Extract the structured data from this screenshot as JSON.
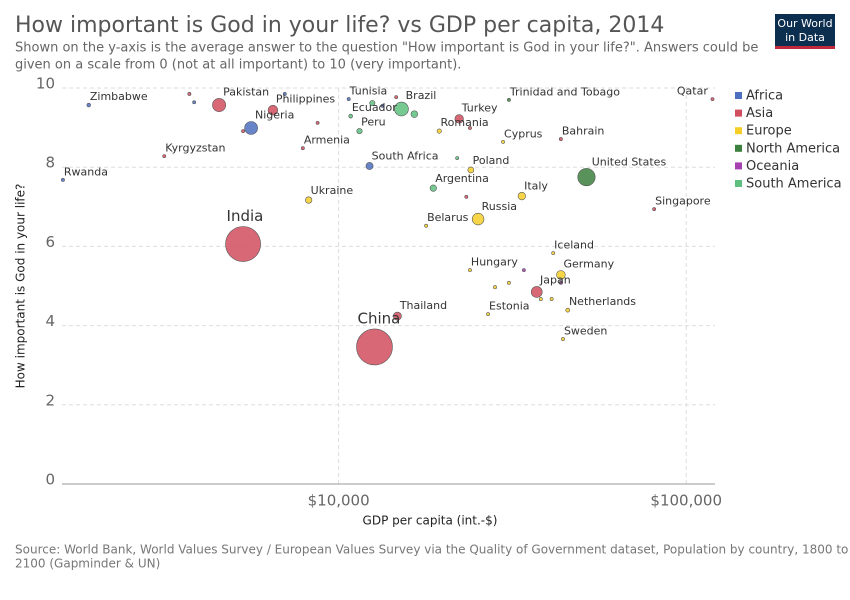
{
  "chart_data": {
    "type": "scatter",
    "title": "How important is God in your life? vs GDP per capita, 2014",
    "subtitle": [
      "Shown on the y-axis is the average answer to the question \"How important is God in your life?\". Answers could be",
      "given on a scale from 0 (not at all important) to 10 (very important)."
    ],
    "logo": [
      "Our World",
      "in Data"
    ],
    "x_label": "GDP per capita (int.-$)",
    "y_label": "How important is God in your life?",
    "source": [
      "Source: World Bank, World Values Survey / European Values Survey via the Quality of Government dataset, Population by country, 1800 to",
      "2100 (Gapminder & UN)"
    ],
    "log_x": true,
    "grid": true,
    "legend": "right",
    "xlim": [
      1600,
      121000
    ],
    "xticks": [
      {
        "value": 10000,
        "label": "$10,000"
      },
      {
        "value": 100000,
        "label": "$100,000"
      }
    ],
    "ylim": [
      0,
      10
    ],
    "yticks": [
      0,
      2,
      4,
      6,
      8,
      10
    ],
    "series": [
      {
        "name": "Africa",
        "color": "#4c6fc0",
        "labels": [
          "Zimbabwe",
          "Rwanda",
          "Nigeria",
          "Tunisia",
          "South Africa",
          null,
          null,
          null
        ],
        "x": [
          1910,
          1610,
          5600,
          10690,
          12270,
          3840,
          7000,
          13370
        ],
        "values": [
          9.57,
          7.68,
          8.99,
          9.72,
          8.03,
          9.64,
          9.85,
          9.55
        ],
        "sizes": [
          15000000,
          11000000,
          177000000,
          11000000,
          54000000,
          4000000,
          6000000,
          10000000
        ]
      },
      {
        "name": "Asia",
        "color": "#d14e5e",
        "labels": [
          "Kyrgyzstan",
          "Pakistan",
          "India",
          "Philippines",
          "Armenia",
          "China",
          "Thailand",
          "Turkey",
          "Japan",
          "Bahrain",
          "Singapore",
          "Qatar",
          null,
          null,
          null,
          null,
          null,
          null
        ],
        "x": [
          3150,
          4530,
          5310,
          6470,
          7890,
          12680,
          14760,
          22220,
          37150,
          43590,
          80860,
          119000,
          3720,
          5310,
          8700,
          14640,
          23300,
          23870
        ],
        "values": [
          8.28,
          9.57,
          6.06,
          9.44,
          8.48,
          3.46,
          4.24,
          9.22,
          4.85,
          8.71,
          6.94,
          9.72,
          9.85,
          8.91,
          9.12,
          9.77,
          7.25,
          8.99
        ],
        "sizes": [
          6000000,
          185000000,
          1290000000,
          100000000,
          3000000,
          1360000000,
          68000000,
          77000000,
          127000000,
          1300000,
          5500000,
          2400000,
          8000000,
          8000000,
          1000000,
          4000000,
          4000000,
          3000000
        ]
      },
      {
        "name": "Europe",
        "color": "#f5cf28",
        "labels": [
          "Ukraine",
          "Romania",
          "Belarus",
          "Poland",
          "Russia",
          "Hungary",
          "Estonia",
          "Cyprus",
          "Italy",
          "Iceland",
          "Germany",
          "Netherlands",
          "Sweden",
          null,
          null,
          null,
          null
        ],
        "x": [
          8200,
          19470,
          17850,
          24010,
          25190,
          23870,
          26910,
          29720,
          33650,
          41430,
          43590,
          45620,
          44200,
          28180,
          30900,
          38170,
          41000
        ],
        "values": [
          7.17,
          8.91,
          6.52,
          7.93,
          6.69,
          5.4,
          4.29,
          8.64,
          7.27,
          5.83,
          5.28,
          4.39,
          3.66,
          4.97,
          5.08,
          4.67,
          4.67
        ],
        "sizes": [
          45000000,
          20000000,
          9500000,
          38000000,
          144000000,
          10000000,
          1300000,
          1200000,
          60000000,
          330000,
          81000000,
          17000000,
          9700000,
          2000000,
          10000000,
          11000000,
          5000000
        ]
      },
      {
        "name": "North America",
        "color": "#3d7f3e",
        "labels": [
          "United States",
          "Trinidad and Tobago"
        ],
        "x": [
          51640,
          30900
        ],
        "values": [
          7.75,
          9.7
        ],
        "sizes": [
          319000000,
          1300000
        ]
      },
      {
        "name": "Oceania",
        "color": "#a640b0",
        "labels": [
          null,
          null
        ],
        "x": [
          34120,
          43590
        ],
        "values": [
          5.4,
          5.08
        ],
        "sizes": [
          4500000,
          2000000
        ]
      },
      {
        "name": "South America",
        "color": "#5fbf7f",
        "labels": [
          "Ecuador",
          "Peru",
          "Brazil",
          "Argentina",
          null,
          null,
          null
        ],
        "x": [
          10830,
          11480,
          15160,
          18720,
          21930,
          16510,
          12500
        ],
        "values": [
          9.29,
          8.91,
          9.47,
          7.47,
          8.23,
          9.34,
          9.62
        ],
        "sizes": [
          16000000,
          31000000,
          204000000,
          43000000,
          3000000,
          48000000,
          30000000
        ]
      }
    ]
  }
}
